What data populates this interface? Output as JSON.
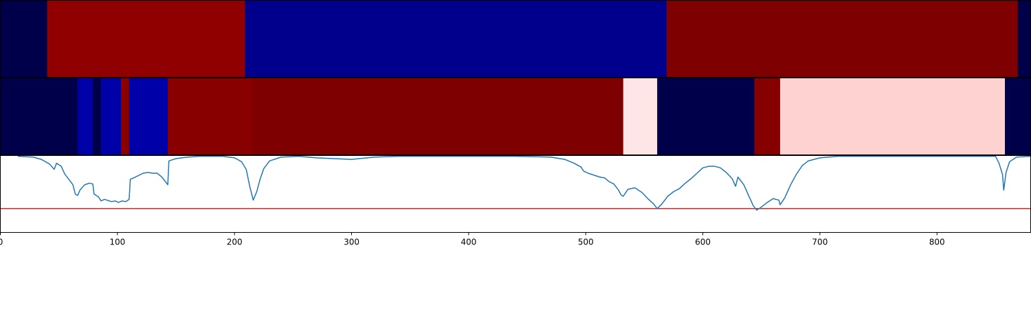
{
  "chart_data": [
    {
      "type": "heatmap",
      "segments": [
        {
          "start": 0,
          "end": 40,
          "color": "#00004a"
        },
        {
          "start": 40,
          "end": 209,
          "color": "#900000"
        },
        {
          "start": 209,
          "end": 569,
          "color": "#00008c"
        },
        {
          "start": 569,
          "end": 869,
          "color": "#7f0000"
        },
        {
          "start": 869,
          "end": 880,
          "color": "#00004a"
        }
      ]
    },
    {
      "type": "heatmap",
      "segments": [
        {
          "start": 0,
          "end": 66,
          "color": "#00004a"
        },
        {
          "start": 66,
          "end": 79,
          "color": "#0000a8"
        },
        {
          "start": 79,
          "end": 86,
          "color": "#00004a"
        },
        {
          "start": 86,
          "end": 103,
          "color": "#0000a8"
        },
        {
          "start": 103,
          "end": 110,
          "color": "#880000"
        },
        {
          "start": 110,
          "end": 143,
          "color": "#0000a8"
        },
        {
          "start": 143,
          "end": 215,
          "color": "#880000"
        },
        {
          "start": 215,
          "end": 532,
          "color": "#7f0000"
        },
        {
          "start": 532,
          "end": 561,
          "color": "#ffe6e6"
        },
        {
          "start": 561,
          "end": 644,
          "color": "#00004a"
        },
        {
          "start": 644,
          "end": 666,
          "color": "#860000"
        },
        {
          "start": 666,
          "end": 858,
          "color": "#ffd2d2"
        },
        {
          "start": 858,
          "end": 880,
          "color": "#00004a"
        }
      ]
    },
    {
      "type": "line",
      "xlim": [
        0,
        880
      ],
      "ylim": [
        0,
        1
      ],
      "xticks": [
        0,
        100,
        200,
        300,
        400,
        500,
        600,
        700,
        800
      ],
      "threshold": 0.31,
      "threshold_color": "#d62728",
      "line_color": "#1f77b4",
      "points": [
        [
          15,
          0.99
        ],
        [
          28,
          0.98
        ],
        [
          35,
          0.95
        ],
        [
          42,
          0.89
        ],
        [
          46,
          0.82
        ],
        [
          48,
          0.9
        ],
        [
          52,
          0.86
        ],
        [
          55,
          0.76
        ],
        [
          58,
          0.7
        ],
        [
          62,
          0.62
        ],
        [
          64,
          0.5
        ],
        [
          66,
          0.48
        ],
        [
          68,
          0.55
        ],
        [
          72,
          0.62
        ],
        [
          76,
          0.64
        ],
        [
          79,
          0.63
        ],
        [
          80,
          0.5
        ],
        [
          84,
          0.46
        ],
        [
          86,
          0.41
        ],
        [
          89,
          0.43
        ],
        [
          91,
          0.42
        ],
        [
          95,
          0.4
        ],
        [
          98,
          0.41
        ],
        [
          101,
          0.39
        ],
        [
          104,
          0.41
        ],
        [
          107,
          0.4
        ],
        [
          110,
          0.43
        ],
        [
          111,
          0.69
        ],
        [
          114,
          0.71
        ],
        [
          118,
          0.74
        ],
        [
          122,
          0.77
        ],
        [
          126,
          0.78
        ],
        [
          130,
          0.77
        ],
        [
          134,
          0.77
        ],
        [
          138,
          0.72
        ],
        [
          142,
          0.64
        ],
        [
          143,
          0.62
        ],
        [
          144,
          0.93
        ],
        [
          150,
          0.96
        ],
        [
          160,
          0.98
        ],
        [
          170,
          0.99
        ],
        [
          190,
          0.99
        ],
        [
          200,
          0.97
        ],
        [
          206,
          0.92
        ],
        [
          210,
          0.82
        ],
        [
          213,
          0.6
        ],
        [
          216,
          0.42
        ],
        [
          219,
          0.53
        ],
        [
          222,
          0.7
        ],
        [
          225,
          0.83
        ],
        [
          230,
          0.93
        ],
        [
          240,
          0.98
        ],
        [
          255,
          0.99
        ],
        [
          270,
          0.97
        ],
        [
          285,
          0.96
        ],
        [
          300,
          0.95
        ],
        [
          320,
          0.98
        ],
        [
          340,
          0.99
        ],
        [
          380,
          0.99
        ],
        [
          440,
          0.99
        ],
        [
          470,
          0.98
        ],
        [
          482,
          0.95
        ],
        [
          490,
          0.9
        ],
        [
          496,
          0.85
        ],
        [
          498,
          0.8
        ],
        [
          502,
          0.77
        ],
        [
          508,
          0.74
        ],
        [
          512,
          0.72
        ],
        [
          516,
          0.71
        ],
        [
          520,
          0.66
        ],
        [
          524,
          0.63
        ],
        [
          528,
          0.55
        ],
        [
          530,
          0.49
        ],
        [
          532,
          0.47
        ],
        [
          536,
          0.56
        ],
        [
          542,
          0.58
        ],
        [
          548,
          0.52
        ],
        [
          553,
          0.44
        ],
        [
          558,
          0.37
        ],
        [
          561,
          0.31
        ],
        [
          565,
          0.37
        ],
        [
          570,
          0.47
        ],
        [
          575,
          0.53
        ],
        [
          580,
          0.57
        ],
        [
          585,
          0.64
        ],
        [
          590,
          0.7
        ],
        [
          595,
          0.77
        ],
        [
          600,
          0.84
        ],
        [
          605,
          0.86
        ],
        [
          610,
          0.86
        ],
        [
          615,
          0.84
        ],
        [
          620,
          0.78
        ],
        [
          625,
          0.7
        ],
        [
          628,
          0.6
        ],
        [
          630,
          0.72
        ],
        [
          635,
          0.62
        ],
        [
          640,
          0.45
        ],
        [
          643,
          0.35
        ],
        [
          646,
          0.29
        ],
        [
          650,
          0.33
        ],
        [
          655,
          0.39
        ],
        [
          660,
          0.44
        ],
        [
          665,
          0.42
        ],
        [
          666,
          0.36
        ],
        [
          670,
          0.45
        ],
        [
          675,
          0.62
        ],
        [
          680,
          0.76
        ],
        [
          685,
          0.87
        ],
        [
          690,
          0.93
        ],
        [
          700,
          0.97
        ],
        [
          715,
          0.99
        ],
        [
          760,
          0.99
        ],
        [
          850,
          0.99
        ],
        [
          853,
          0.9
        ],
        [
          856,
          0.75
        ],
        [
          857,
          0.55
        ],
        [
          859,
          0.78
        ],
        [
          862,
          0.92
        ],
        [
          868,
          0.98
        ],
        [
          880,
          0.99
        ]
      ]
    }
  ]
}
